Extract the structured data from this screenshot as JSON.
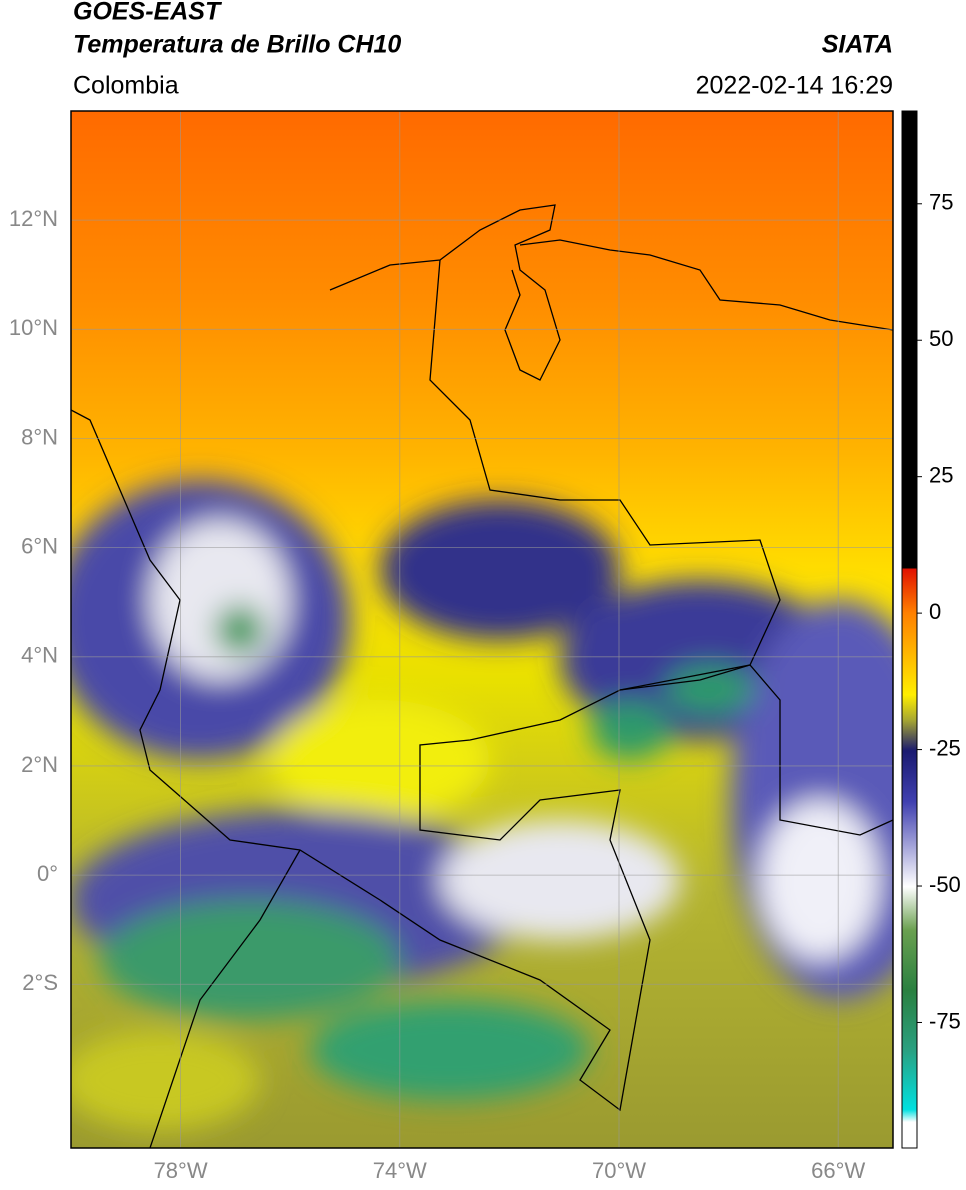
{
  "header": {
    "title_line1": "GOES-EAST",
    "title_line2": "Temperatura de Brillo CH10",
    "source": "SIATA",
    "region": "Colombia",
    "datetime": "2022-02-14 16:29"
  },
  "map": {
    "xlim": [
      -80,
      -65
    ],
    "ylim": [
      -5,
      14
    ],
    "xticks": [
      {
        "value": -78,
        "label": "78°W"
      },
      {
        "value": -74,
        "label": "74°W"
      },
      {
        "value": -70,
        "label": "70°W"
      },
      {
        "value": -66,
        "label": "66°W"
      }
    ],
    "yticks": [
      {
        "value": 12,
        "label": "12°N"
      },
      {
        "value": 10,
        "label": "10°N"
      },
      {
        "value": 8,
        "label": "8°N"
      },
      {
        "value": 6,
        "label": "6°N"
      },
      {
        "value": 4,
        "label": "4°N"
      },
      {
        "value": 2,
        "label": "2°N"
      },
      {
        "value": 0,
        "label": "0°"
      },
      {
        "value": -2,
        "label": "2°S"
      }
    ],
    "grid": true
  },
  "colorbar": {
    "lim": [
      -98,
      92
    ],
    "ticks": [
      75,
      50,
      25,
      0,
      -25,
      -50,
      -75
    ]
  }
}
